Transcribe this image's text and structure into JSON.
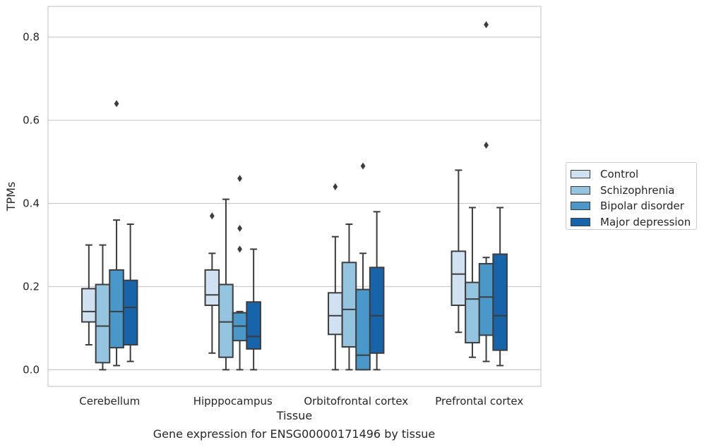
{
  "caption": "Gene expression for ENSG00000171496 by tissue",
  "chart_data": {
    "type": "box",
    "xlabel": "Tissue",
    "ylabel": "TPMs",
    "ylim": [
      -0.04,
      0.874
    ],
    "yticks": [
      0.0,
      0.2,
      0.4,
      0.6,
      0.8
    ],
    "ytick_labels": [
      "0.0",
      "0.2",
      "0.4",
      "0.6",
      "0.8"
    ],
    "grid": "horizontal",
    "legend_position": "right",
    "categories": [
      "Cerebellum",
      "Hipppocampus",
      "Orbitofrontal cortex",
      "Prefrontal cortex"
    ],
    "series": [
      {
        "name": "Control",
        "color": "#d0e1f2",
        "boxes": [
          {
            "whislo": 0.06,
            "q1": 0.115,
            "med": 0.14,
            "q3": 0.195,
            "whishi": 0.3,
            "fliers": []
          },
          {
            "whislo": 0.04,
            "q1": 0.155,
            "med": 0.18,
            "q3": 0.24,
            "whishi": 0.28,
            "fliers": [
              0.37
            ]
          },
          {
            "whislo": 0.0,
            "q1": 0.085,
            "med": 0.13,
            "q3": 0.185,
            "whishi": 0.32,
            "fliers": [
              0.44
            ]
          },
          {
            "whislo": 0.09,
            "q1": 0.155,
            "med": 0.23,
            "q3": 0.285,
            "whishi": 0.48,
            "fliers": []
          }
        ]
      },
      {
        "name": "Schizophrenia",
        "color": "#94c4df",
        "boxes": [
          {
            "whislo": 0.0,
            "q1": 0.017,
            "med": 0.105,
            "q3": 0.205,
            "whishi": 0.3,
            "fliers": []
          },
          {
            "whislo": 0.0,
            "q1": 0.03,
            "med": 0.115,
            "q3": 0.205,
            "whishi": 0.41,
            "fliers": []
          },
          {
            "whislo": 0.0,
            "q1": 0.055,
            "med": 0.145,
            "q3": 0.258,
            "whishi": 0.35,
            "fliers": []
          },
          {
            "whislo": 0.03,
            "q1": 0.065,
            "med": 0.17,
            "q3": 0.21,
            "whishi": 0.39,
            "fliers": []
          }
        ]
      },
      {
        "name": "Bipolar disorder",
        "color": "#4a98c9",
        "boxes": [
          {
            "whislo": 0.01,
            "q1": 0.053,
            "med": 0.14,
            "q3": 0.24,
            "whishi": 0.36,
            "fliers": [
              0.64
            ]
          },
          {
            "whislo": 0.0,
            "q1": 0.07,
            "med": 0.105,
            "q3": 0.137,
            "whishi": 0.14,
            "fliers": [
              0.29,
              0.34,
              0.46
            ]
          },
          {
            "whislo": 0.0,
            "q1": 0.0,
            "med": 0.035,
            "q3": 0.193,
            "whishi": 0.28,
            "fliers": [
              0.49
            ]
          },
          {
            "whislo": 0.02,
            "q1": 0.083,
            "med": 0.175,
            "q3": 0.255,
            "whishi": 0.27,
            "fliers": [
              0.54,
              0.83
            ]
          }
        ]
      },
      {
        "name": "Major depression",
        "color": "#1764ab",
        "boxes": [
          {
            "whislo": 0.02,
            "q1": 0.06,
            "med": 0.15,
            "q3": 0.215,
            "whishi": 0.35,
            "fliers": []
          },
          {
            "whislo": 0.0,
            "q1": 0.05,
            "med": 0.08,
            "q3": 0.163,
            "whishi": 0.29,
            "fliers": []
          },
          {
            "whislo": 0.0,
            "q1": 0.04,
            "med": 0.13,
            "q3": 0.246,
            "whishi": 0.38,
            "fliers": []
          },
          {
            "whislo": 0.01,
            "q1": 0.047,
            "med": 0.13,
            "q3": 0.278,
            "whishi": 0.39,
            "fliers": []
          }
        ]
      }
    ]
  }
}
